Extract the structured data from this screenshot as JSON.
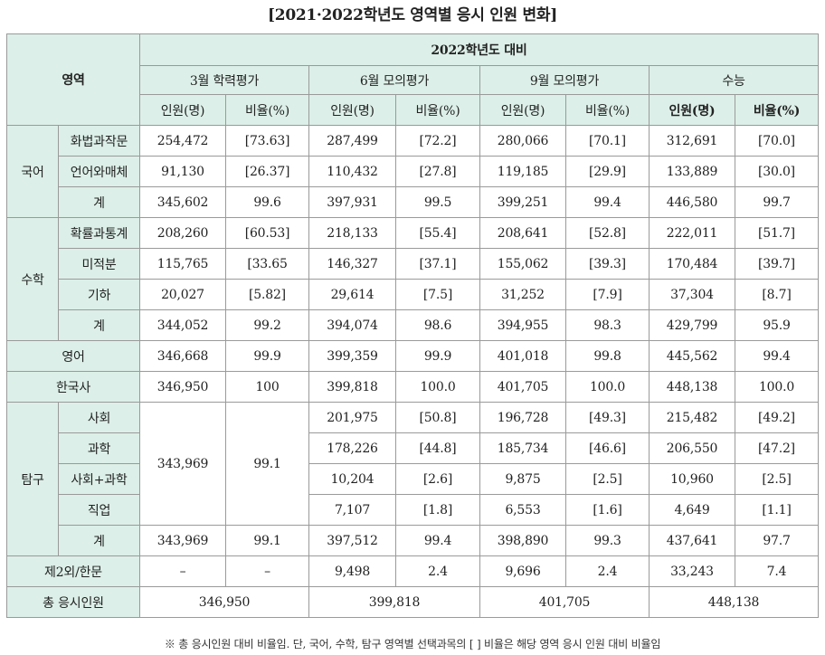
{
  "title": "[2021·2022학년도 영역별 응시 인원 변화]",
  "header": {
    "area": "영역",
    "group": "2022학년도 대비",
    "exams": [
      "3월 학력평가",
      "6월 모의평가",
      "9월 모의평가",
      "수능"
    ],
    "count": "인원(명)",
    "ratio": "비율(%)",
    "count_bold": "인원(명)",
    "ratio_bold": "비율(%)"
  },
  "korean": {
    "label": "국어",
    "rows": [
      {
        "sub": "화법과작문",
        "v": [
          "254,472",
          "[73.63]",
          "287,499",
          "[72.2]",
          "280,066",
          "[70.1]",
          "312,691",
          "[70.0]"
        ]
      },
      {
        "sub": "언어와매체",
        "v": [
          "91,130",
          "[26.37]",
          "110,432",
          "[27.8]",
          "119,185",
          "[29.9]",
          "133,889",
          "[30.0]"
        ]
      },
      {
        "sub": "계",
        "v": [
          "345,602",
          "99.6",
          "397,931",
          "99.5",
          "399,251",
          "99.4",
          "446,580",
          "99.7"
        ]
      }
    ]
  },
  "math": {
    "label": "수학",
    "rows": [
      {
        "sub": "확률과통계",
        "v": [
          "208,260",
          "[60.53]",
          "218,133",
          "[55.4]",
          "208,641",
          "[52.8]",
          "222,011",
          "[51.7]"
        ]
      },
      {
        "sub": "미적분",
        "v": [
          "115,765",
          "[33.65",
          "146,327",
          "[37.1]",
          "155,062",
          "[39.3]",
          "170,484",
          "[39.7]"
        ]
      },
      {
        "sub": "기하",
        "v": [
          "20,027",
          "[5.82]",
          "29,614",
          "[7.5]",
          "31,252",
          "[7.9]",
          "37,304",
          "[8.7]"
        ]
      },
      {
        "sub": "계",
        "v": [
          "344,052",
          "99.2",
          "394,074",
          "98.6",
          "394,955",
          "98.3",
          "429,799",
          "95.9"
        ]
      }
    ]
  },
  "english": {
    "label": "영어",
    "v": [
      "346,668",
      "99.9",
      "399,359",
      "99.9",
      "401,018",
      "99.8",
      "445,562",
      "99.4"
    ]
  },
  "history": {
    "label": "한국사",
    "v": [
      "346,950",
      "100",
      "399,818",
      "100.0",
      "401,705",
      "100.0",
      "448,138",
      "100.0"
    ]
  },
  "inquiry": {
    "label": "탐구",
    "march_count": "343,969",
    "march_ratio": "99.1",
    "rows": [
      {
        "sub": "사회",
        "v": [
          "201,975",
          "[50.8]",
          "196,728",
          "[49.3]",
          "215,482",
          "[49.2]"
        ]
      },
      {
        "sub": "과학",
        "v": [
          "178,226",
          "[44.8]",
          "185,734",
          "[46.6]",
          "206,550",
          "[47.2]"
        ]
      },
      {
        "sub": "사회+과학",
        "v": [
          "10,204",
          "[2.6]",
          "9,875",
          "[2.5]",
          "10,960",
          "[2.5]"
        ]
      },
      {
        "sub": "직업",
        "v": [
          "7,107",
          "[1.8]",
          "6,553",
          "[1.6]",
          "4,649",
          "[1.1]"
        ]
      }
    ],
    "total": {
      "sub": "계",
      "v": [
        "343,969",
        "99.1",
        "397,512",
        "99.4",
        "398,890",
        "99.3",
        "437,641",
        "97.7"
      ]
    }
  },
  "second_lang": {
    "label": "제2외/한문",
    "v": [
      "–",
      "–",
      "9,498",
      "2.4",
      "9,696",
      "2.4",
      "33,243",
      "7.4"
    ]
  },
  "total_applicants": {
    "label": "총 응시인원",
    "v": [
      "346,950",
      "399,818",
      "401,705",
      "448,138"
    ]
  },
  "footnote": "※ 총 응시인원 대비 비율임. 단, 국어, 수학, 탐구 영역별 선택과목의 [ ] 비율은 해당 영역 응시 인원 대비 비율임"
}
